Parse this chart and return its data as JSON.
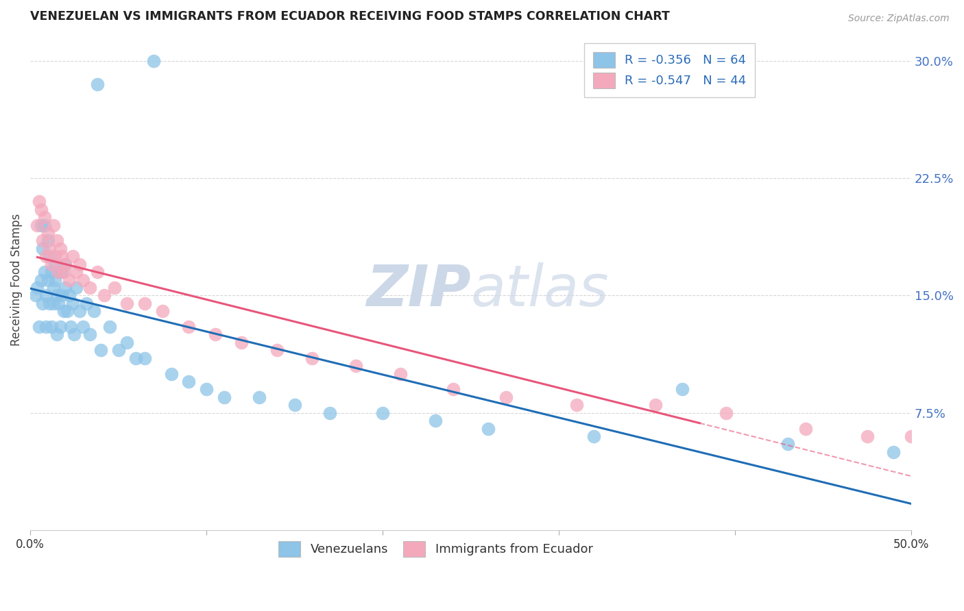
{
  "title": "VENEZUELAN VS IMMIGRANTS FROM ECUADOR RECEIVING FOOD STAMPS CORRELATION CHART",
  "source": "Source: ZipAtlas.com",
  "ylabel": "Receiving Food Stamps",
  "xlim": [
    0.0,
    0.5
  ],
  "ylim": [
    0.0,
    0.32
  ],
  "xticks": [
    0.0,
    0.1,
    0.2,
    0.3,
    0.4,
    0.5
  ],
  "xticklabels": [
    "0.0%",
    "",
    "",
    "",
    "",
    "50.0%"
  ],
  "yticks_right": [
    0.075,
    0.15,
    0.225,
    0.3
  ],
  "ytick_labels_right": [
    "7.5%",
    "15.0%",
    "22.5%",
    "30.0%"
  ],
  "R_blue": -0.356,
  "N_blue": 64,
  "R_pink": -0.547,
  "N_pink": 44,
  "legend_label_blue": "Venezuelans",
  "legend_label_pink": "Immigrants from Ecuador",
  "color_blue": "#8dc4e8",
  "color_pink": "#f4a8bc",
  "color_blue_line": "#1f6db5",
  "color_pink_line": "#e8557a",
  "watermark_color": "#ccd8e8",
  "background_color": "#ffffff",
  "grid_color": "#cccccc",
  "venezuelan_x": [
    0.003,
    0.004,
    0.005,
    0.006,
    0.006,
    0.007,
    0.007,
    0.008,
    0.008,
    0.009,
    0.009,
    0.01,
    0.01,
    0.011,
    0.011,
    0.012,
    0.012,
    0.013,
    0.013,
    0.014,
    0.014,
    0.015,
    0.015,
    0.016,
    0.016,
    0.017,
    0.018,
    0.018,
    0.019,
    0.02,
    0.02,
    0.021,
    0.022,
    0.023,
    0.024,
    0.025,
    0.026,
    0.028,
    0.03,
    0.032,
    0.034,
    0.036,
    0.038,
    0.04,
    0.045,
    0.05,
    0.055,
    0.06,
    0.065,
    0.07,
    0.08,
    0.09,
    0.1,
    0.11,
    0.13,
    0.15,
    0.17,
    0.2,
    0.23,
    0.26,
    0.32,
    0.37,
    0.43,
    0.49
  ],
  "venezuelan_y": [
    0.15,
    0.155,
    0.13,
    0.195,
    0.16,
    0.18,
    0.145,
    0.165,
    0.195,
    0.13,
    0.15,
    0.16,
    0.185,
    0.145,
    0.175,
    0.13,
    0.165,
    0.145,
    0.155,
    0.16,
    0.17,
    0.125,
    0.15,
    0.145,
    0.165,
    0.13,
    0.15,
    0.165,
    0.14,
    0.155,
    0.17,
    0.14,
    0.15,
    0.13,
    0.145,
    0.125,
    0.155,
    0.14,
    0.13,
    0.145,
    0.125,
    0.14,
    0.285,
    0.115,
    0.13,
    0.115,
    0.12,
    0.11,
    0.11,
    0.3,
    0.1,
    0.095,
    0.09,
    0.085,
    0.085,
    0.08,
    0.075,
    0.075,
    0.07,
    0.065,
    0.06,
    0.09,
    0.055,
    0.05
  ],
  "ecuador_x": [
    0.004,
    0.005,
    0.006,
    0.007,
    0.008,
    0.009,
    0.01,
    0.011,
    0.012,
    0.013,
    0.014,
    0.015,
    0.016,
    0.017,
    0.018,
    0.019,
    0.02,
    0.022,
    0.024,
    0.026,
    0.028,
    0.03,
    0.034,
    0.038,
    0.042,
    0.048,
    0.055,
    0.065,
    0.075,
    0.09,
    0.105,
    0.12,
    0.14,
    0.16,
    0.185,
    0.21,
    0.24,
    0.27,
    0.31,
    0.355,
    0.395,
    0.44,
    0.475,
    0.5
  ],
  "ecuador_y": [
    0.195,
    0.21,
    0.205,
    0.185,
    0.2,
    0.175,
    0.19,
    0.18,
    0.17,
    0.195,
    0.175,
    0.185,
    0.165,
    0.18,
    0.175,
    0.165,
    0.17,
    0.16,
    0.175,
    0.165,
    0.17,
    0.16,
    0.155,
    0.165,
    0.15,
    0.155,
    0.145,
    0.145,
    0.14,
    0.13,
    0.125,
    0.12,
    0.115,
    0.11,
    0.105,
    0.1,
    0.09,
    0.085,
    0.08,
    0.08,
    0.075,
    0.065,
    0.06,
    0.06
  ],
  "pink_line_solid_end_x": 0.38,
  "blue_line_end_x": 0.5
}
